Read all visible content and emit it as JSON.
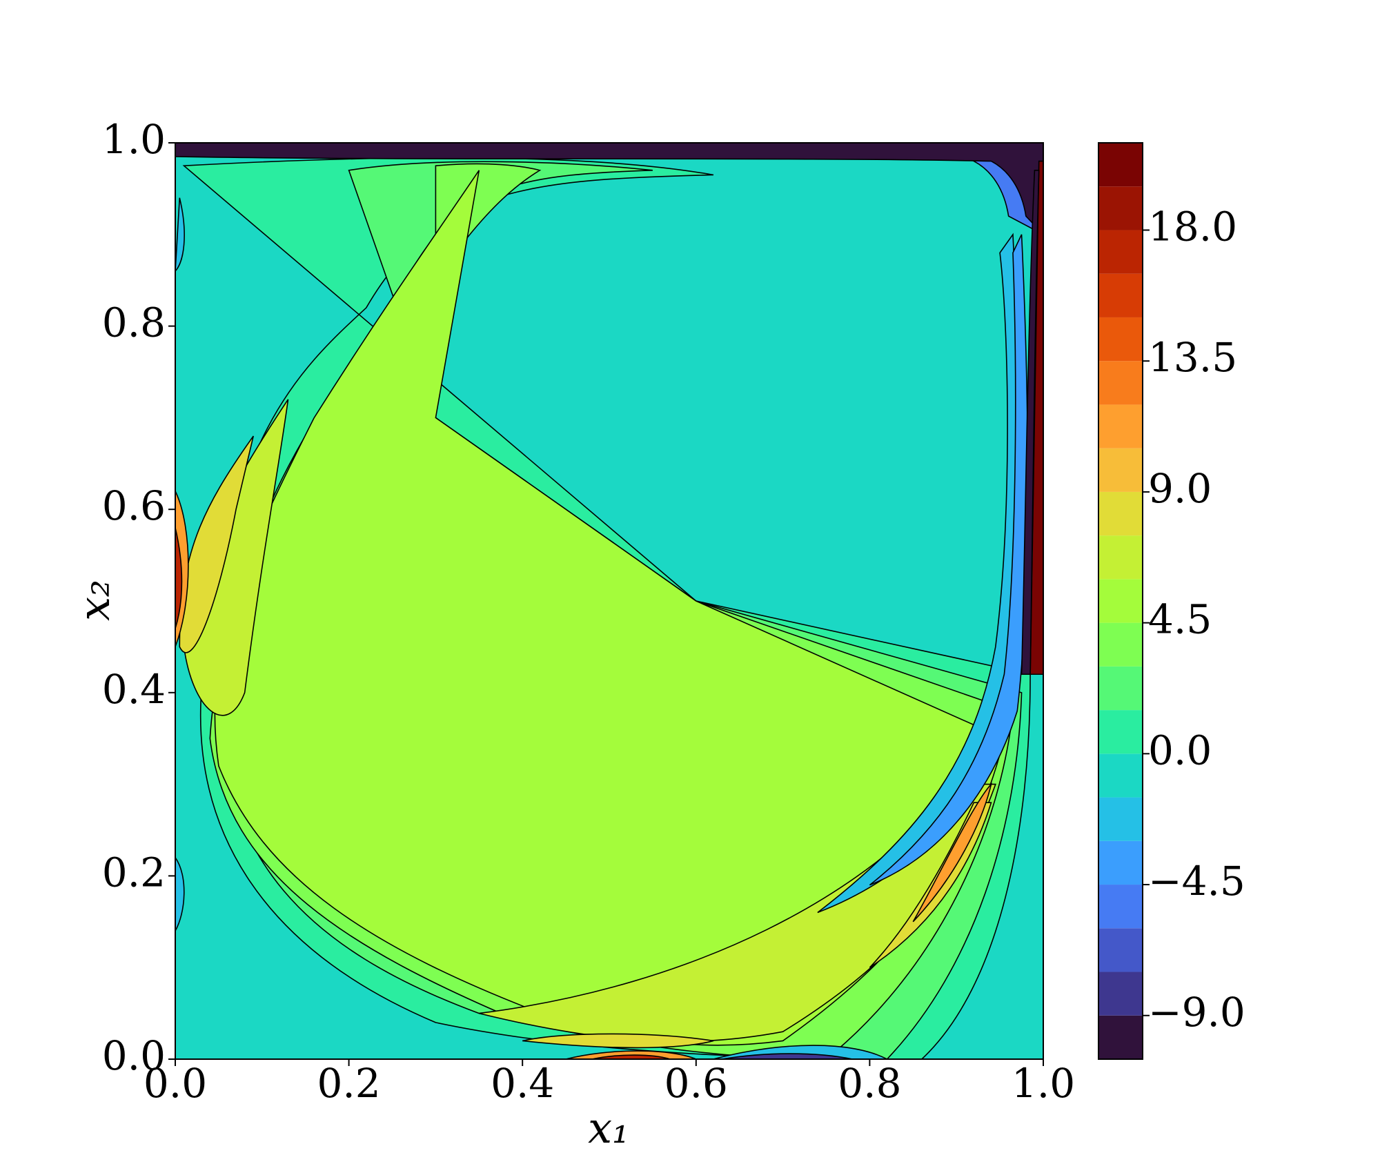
{
  "chart_data": {
    "type": "contour",
    "x_label": "x₁",
    "y_label": "x₂",
    "xlim": [
      0,
      1
    ],
    "ylim": [
      0,
      1
    ],
    "xticks": [
      {
        "value": 0,
        "label": "0.0"
      },
      0.2,
      0.4,
      0.6,
      0.8,
      {
        "value": 1,
        "label": "1.0"
      }
    ],
    "yticks": [
      {
        "value": 0,
        "label": "0.0"
      },
      0.2,
      0.4,
      0.6,
      0.8,
      {
        "value": 1,
        "label": "1.0"
      }
    ],
    "colorbar": {
      "levels": [
        -10.5,
        -9,
        -7.5,
        -6,
        -4.5,
        -3,
        -1.5,
        0,
        1.5,
        3,
        4.5,
        6,
        7.5,
        9,
        10.5,
        12,
        13.5,
        15,
        16.5,
        18,
        19.5,
        21
      ],
      "colors": [
        "#30123b",
        "#3e378f",
        "#4458c9",
        "#467bf3",
        "#3b9efd",
        "#25c0e6",
        "#1bd8c4",
        "#2aeda0",
        "#55f876",
        "#7efe52",
        "#a4fc3b",
        "#c4f034",
        "#e1dc37",
        "#f7bd39",
        "#fe9f2f",
        "#f87c1c",
        "#ea590b",
        "#d73c05",
        "#bb2502",
        "#9b1403",
        "#7a0403"
      ],
      "ticks": [
        {
          "value": -9,
          "label": "−9.0"
        },
        {
          "value": -4.5,
          "label": "−4.5"
        },
        {
          "value": 0,
          "label": "0.0"
        },
        {
          "value": 4.5,
          "label": "4.5"
        },
        {
          "value": 9,
          "label": "9.0"
        },
        {
          "value": 13.5,
          "label": "13.5"
        },
        {
          "value": 18,
          "label": "18.0"
        }
      ]
    }
  }
}
